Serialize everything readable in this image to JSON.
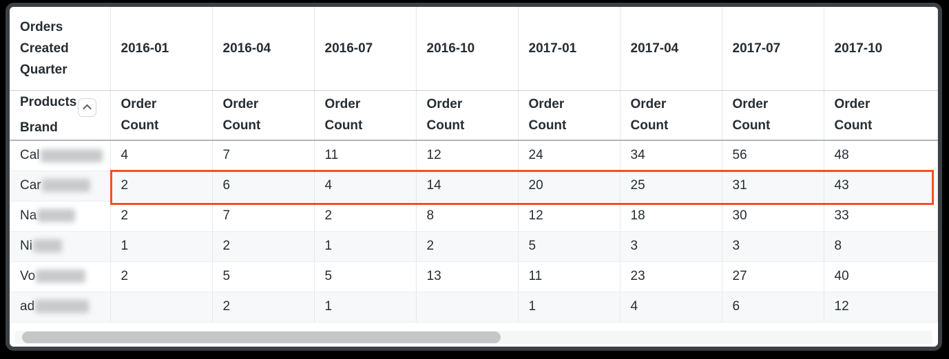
{
  "colors": {
    "window_frame": "#3b4044",
    "header_text": "#262d33",
    "body_text": "#262d33",
    "grid_line": "#e6e8ea",
    "header_divider": "#b2b5b9",
    "zebra_row_bg": "#f7f8f9",
    "highlight_border": "#f4501e",
    "redacted_block": "#c7c9cb",
    "scrollbar_thumb": "#c4c6c8",
    "scrollbar_track": "#f5f6f6"
  },
  "table": {
    "corner_header": "Orders Created Quarter",
    "row_dimension": {
      "label_line1": "Products",
      "label_line2": "Brand"
    },
    "collapse_icon": "chevron-up",
    "measure_label": "Order Count",
    "quarters": [
      "2016-01",
      "2016-04",
      "2016-07",
      "2016-10",
      "2017-01",
      "2017-04",
      "2017-07",
      "2017-10"
    ],
    "rows": [
      {
        "brand": "Cal",
        "redacted_width": 90,
        "highlighted": false,
        "values": [
          "4",
          "7",
          "11",
          "12",
          "24",
          "34",
          "56",
          "48"
        ]
      },
      {
        "brand": "Car",
        "redacted_width": 70,
        "highlighted": true,
        "values": [
          "2",
          "6",
          "4",
          "14",
          "20",
          "25",
          "31",
          "43"
        ]
      },
      {
        "brand": "Na",
        "redacted_width": 55,
        "highlighted": false,
        "values": [
          "2",
          "7",
          "2",
          "8",
          "12",
          "18",
          "30",
          "33"
        ]
      },
      {
        "brand": "Ni",
        "redacted_width": 42,
        "highlighted": false,
        "values": [
          "1",
          "2",
          "1",
          "2",
          "5",
          "3",
          "3",
          "8"
        ]
      },
      {
        "brand": "Vo",
        "redacted_width": 72,
        "highlighted": false,
        "values": [
          "2",
          "5",
          "5",
          "13",
          "11",
          "23",
          "27",
          "40"
        ]
      },
      {
        "brand": "ad",
        "redacted_width": 78,
        "highlighted": false,
        "values": [
          "",
          "2",
          "1",
          "",
          "1",
          "4",
          "6",
          "12"
        ]
      }
    ]
  }
}
